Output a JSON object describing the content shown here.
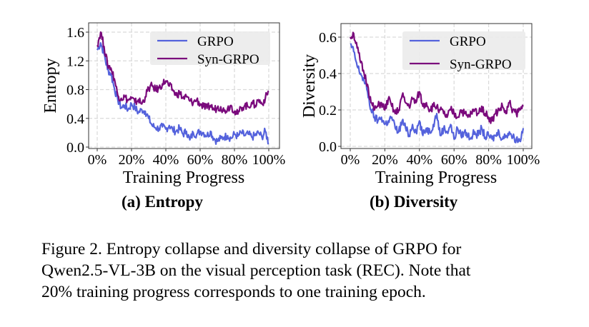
{
  "figure": {
    "caption_lines": [
      "Figure 2.  Entropy collapse and diversity collapse of GRPO for",
      "Qwen2.5-VL-3B on the visual perception task (REC). Note that",
      "20% training progress corresponds to one training epoch."
    ],
    "subtitles": [
      "(a) Entropy",
      "(b) Diversity"
    ]
  },
  "colors": {
    "GRPO": "#5462dc",
    "Syn-GRPO": "#7a0a7c",
    "grid": "#d9d9d9",
    "legend_bg": "#ebebeb"
  },
  "chart_data": [
    {
      "type": "line",
      "title": "(a) Entropy",
      "xlabel": "Training Progress",
      "ylabel": "Entropy",
      "xlim": [
        0,
        100
      ],
      "ylim": [
        0.0,
        1.62
      ],
      "xticks": [
        0,
        20,
        40,
        60,
        80,
        100
      ],
      "xtick_labels": [
        "0%",
        "20%",
        "40%",
        "60%",
        "80%",
        "100%"
      ],
      "yticks": [
        0.0,
        0.4,
        0.8,
        1.2,
        1.6
      ],
      "ytick_labels": [
        "0.0",
        "0.4",
        "0.8",
        "1.2",
        "1.6"
      ],
      "grid": true,
      "legend": "top-right",
      "x": [
        0,
        2,
        4,
        6,
        8,
        10,
        12,
        14,
        16,
        18,
        20,
        22,
        24,
        26,
        28,
        30,
        32,
        34,
        36,
        38,
        40,
        42,
        44,
        46,
        48,
        50,
        52,
        54,
        56,
        58,
        60,
        62,
        64,
        66,
        68,
        70,
        72,
        74,
        76,
        78,
        80,
        82,
        84,
        86,
        88,
        90,
        92,
        94,
        96,
        98,
        100
      ],
      "series": [
        {
          "name": "GRPO",
          "values": [
            1.35,
            1.45,
            1.3,
            1.08,
            1.02,
            0.82,
            0.66,
            0.55,
            0.58,
            0.52,
            0.6,
            0.55,
            0.48,
            0.52,
            0.5,
            0.4,
            0.3,
            0.27,
            0.26,
            0.28,
            0.25,
            0.3,
            0.24,
            0.22,
            0.26,
            0.18,
            0.22,
            0.1,
            0.2,
            0.18,
            0.22,
            0.2,
            0.16,
            0.22,
            0.12,
            0.08,
            0.12,
            0.14,
            0.16,
            0.12,
            0.18,
            0.15,
            0.2,
            0.16,
            0.18,
            0.14,
            0.16,
            0.2,
            0.14,
            0.22,
            0.05
          ]
        },
        {
          "name": "Syn-GRPO",
          "values": [
            1.42,
            1.6,
            1.4,
            1.15,
            1.1,
            0.95,
            0.72,
            0.68,
            0.7,
            0.65,
            0.68,
            0.62,
            0.66,
            0.6,
            0.7,
            0.82,
            0.85,
            0.8,
            0.82,
            0.88,
            0.92,
            0.85,
            0.8,
            0.72,
            0.76,
            0.68,
            0.7,
            0.64,
            0.62,
            0.66,
            0.6,
            0.56,
            0.54,
            0.58,
            0.52,
            0.55,
            0.56,
            0.5,
            0.54,
            0.58,
            0.5,
            0.46,
            0.55,
            0.58,
            0.56,
            0.62,
            0.58,
            0.66,
            0.6,
            0.68,
            0.78
          ]
        }
      ]
    },
    {
      "type": "line",
      "title": "(b) Diversity",
      "xlabel": "Training Progress",
      "ylabel": "Diversity",
      "xlim": [
        0,
        100
      ],
      "ylim": [
        0.0,
        0.66
      ],
      "xticks": [
        0,
        20,
        40,
        60,
        80,
        100
      ],
      "xtick_labels": [
        "0%",
        "20%",
        "40%",
        "60%",
        "80%",
        "100%"
      ],
      "yticks": [
        0.0,
        0.2,
        0.4,
        0.6
      ],
      "ytick_labels": [
        "0.0",
        "0.2",
        "0.4",
        "0.6"
      ],
      "grid": true,
      "legend": "top-right",
      "x": [
        0,
        2,
        4,
        6,
        8,
        10,
        12,
        14,
        16,
        18,
        20,
        22,
        24,
        26,
        28,
        30,
        32,
        34,
        36,
        38,
        40,
        42,
        44,
        46,
        48,
        50,
        52,
        54,
        56,
        58,
        60,
        62,
        64,
        66,
        68,
        70,
        72,
        74,
        76,
        78,
        80,
        82,
        84,
        86,
        88,
        90,
        92,
        94,
        96,
        98,
        100
      ],
      "series": [
        {
          "name": "GRPO",
          "values": [
            0.56,
            0.52,
            0.44,
            0.4,
            0.36,
            0.3,
            0.2,
            0.16,
            0.14,
            0.16,
            0.12,
            0.14,
            0.16,
            0.1,
            0.08,
            0.14,
            0.1,
            0.06,
            0.12,
            0.08,
            0.14,
            0.06,
            0.1,
            0.08,
            0.12,
            0.18,
            0.06,
            0.1,
            0.08,
            0.12,
            0.04,
            0.1,
            0.06,
            0.08,
            0.06,
            0.05,
            0.08,
            0.06,
            0.1,
            0.05,
            0.06,
            0.04,
            0.06,
            0.08,
            0.04,
            0.06,
            0.08,
            0.05,
            0.04,
            0.03,
            0.1
          ]
        },
        {
          "name": "Syn-GRPO",
          "values": [
            0.6,
            0.62,
            0.54,
            0.46,
            0.4,
            0.34,
            0.24,
            0.2,
            0.22,
            0.24,
            0.2,
            0.26,
            0.22,
            0.18,
            0.2,
            0.28,
            0.24,
            0.22,
            0.26,
            0.24,
            0.3,
            0.22,
            0.24,
            0.2,
            0.22,
            0.22,
            0.2,
            0.18,
            0.16,
            0.2,
            0.18,
            0.16,
            0.2,
            0.18,
            0.16,
            0.18,
            0.2,
            0.18,
            0.22,
            0.18,
            0.16,
            0.14,
            0.18,
            0.2,
            0.22,
            0.18,
            0.24,
            0.2,
            0.18,
            0.2,
            0.22
          ]
        }
      ]
    }
  ]
}
